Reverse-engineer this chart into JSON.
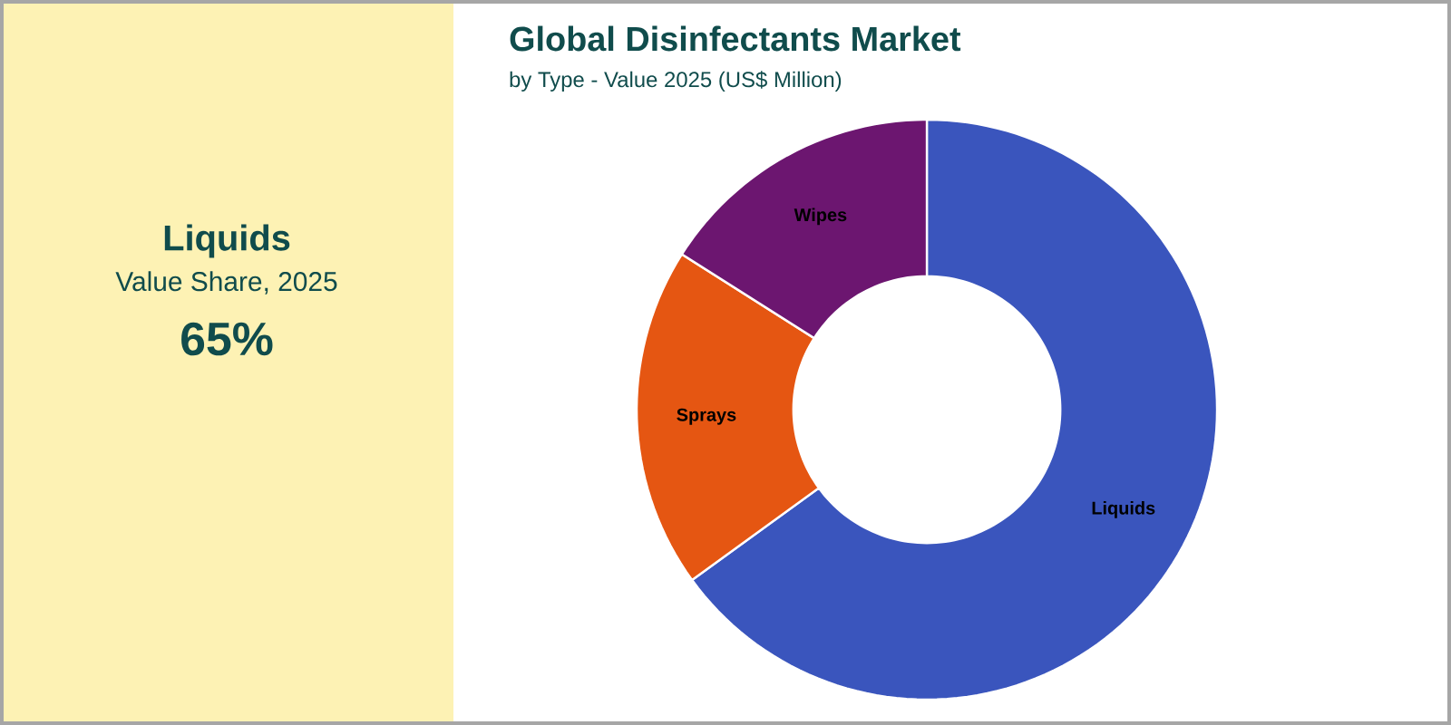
{
  "chart_data": {
    "type": "donut",
    "title": "Global Disinfectants Market",
    "subtitle": "by Type - Value 2025 (US$ Million)",
    "categories": [
      "Liquids",
      "Sprays",
      "Wipes"
    ],
    "values": [
      65,
      19,
      16
    ],
    "colors": [
      "#3a55bd",
      "#e55612",
      "#6c1670"
    ],
    "annotations": [
      "Liquids",
      "Value Share, 2025",
      "65%"
    ]
  }
}
